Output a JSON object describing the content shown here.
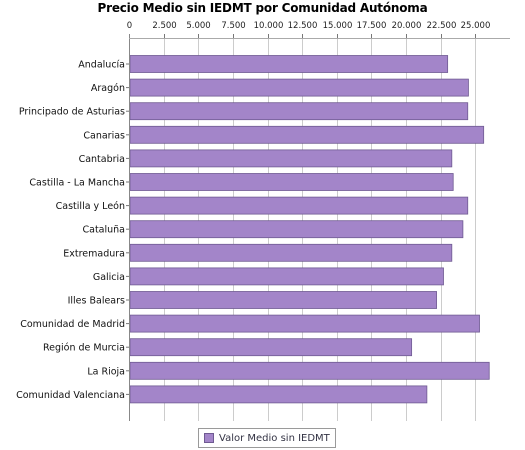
{
  "chart_data": {
    "type": "bar",
    "orientation": "horizontal",
    "title": "Precio Medio sin IEDMT por Comunidad Autónoma",
    "xlabel": "",
    "ylabel": "",
    "xlim": [
      0,
      27500
    ],
    "x_ticks": [
      0,
      2500,
      5000,
      7500,
      10000,
      12500,
      15000,
      17500,
      20000,
      22500,
      25000
    ],
    "x_tick_labels": [
      "0",
      "2.500",
      "5.000",
      "7.500",
      "10.000",
      "12.500",
      "15.000",
      "17.500",
      "20.000",
      "22.500",
      "25.000"
    ],
    "x_axis_position": "top",
    "grid": true,
    "legend_position": "bottom",
    "bar_color": "#a385c9",
    "bar_edge_color": "#6f5a92",
    "grid_color": "#cccccc",
    "categories": [
      "Andalucía",
      "Aragón",
      "Principado de Asturias",
      "Canarias",
      "Cantabria",
      "Castilla - La Mancha",
      "Castilla y León",
      "Cataluña",
      "Extremadura",
      "Galicia",
      "Illes Balears",
      "Comunidad de Madrid",
      "Región de Murcia",
      "La Rioja",
      "Comunidad Valenciana"
    ],
    "series": [
      {
        "name": "Valor Medio sin IEDMT",
        "values": [
          23000,
          24500,
          24450,
          25600,
          23300,
          23400,
          24450,
          24100,
          23300,
          22700,
          22200,
          25300,
          20400,
          26000,
          21500
        ]
      }
    ]
  }
}
